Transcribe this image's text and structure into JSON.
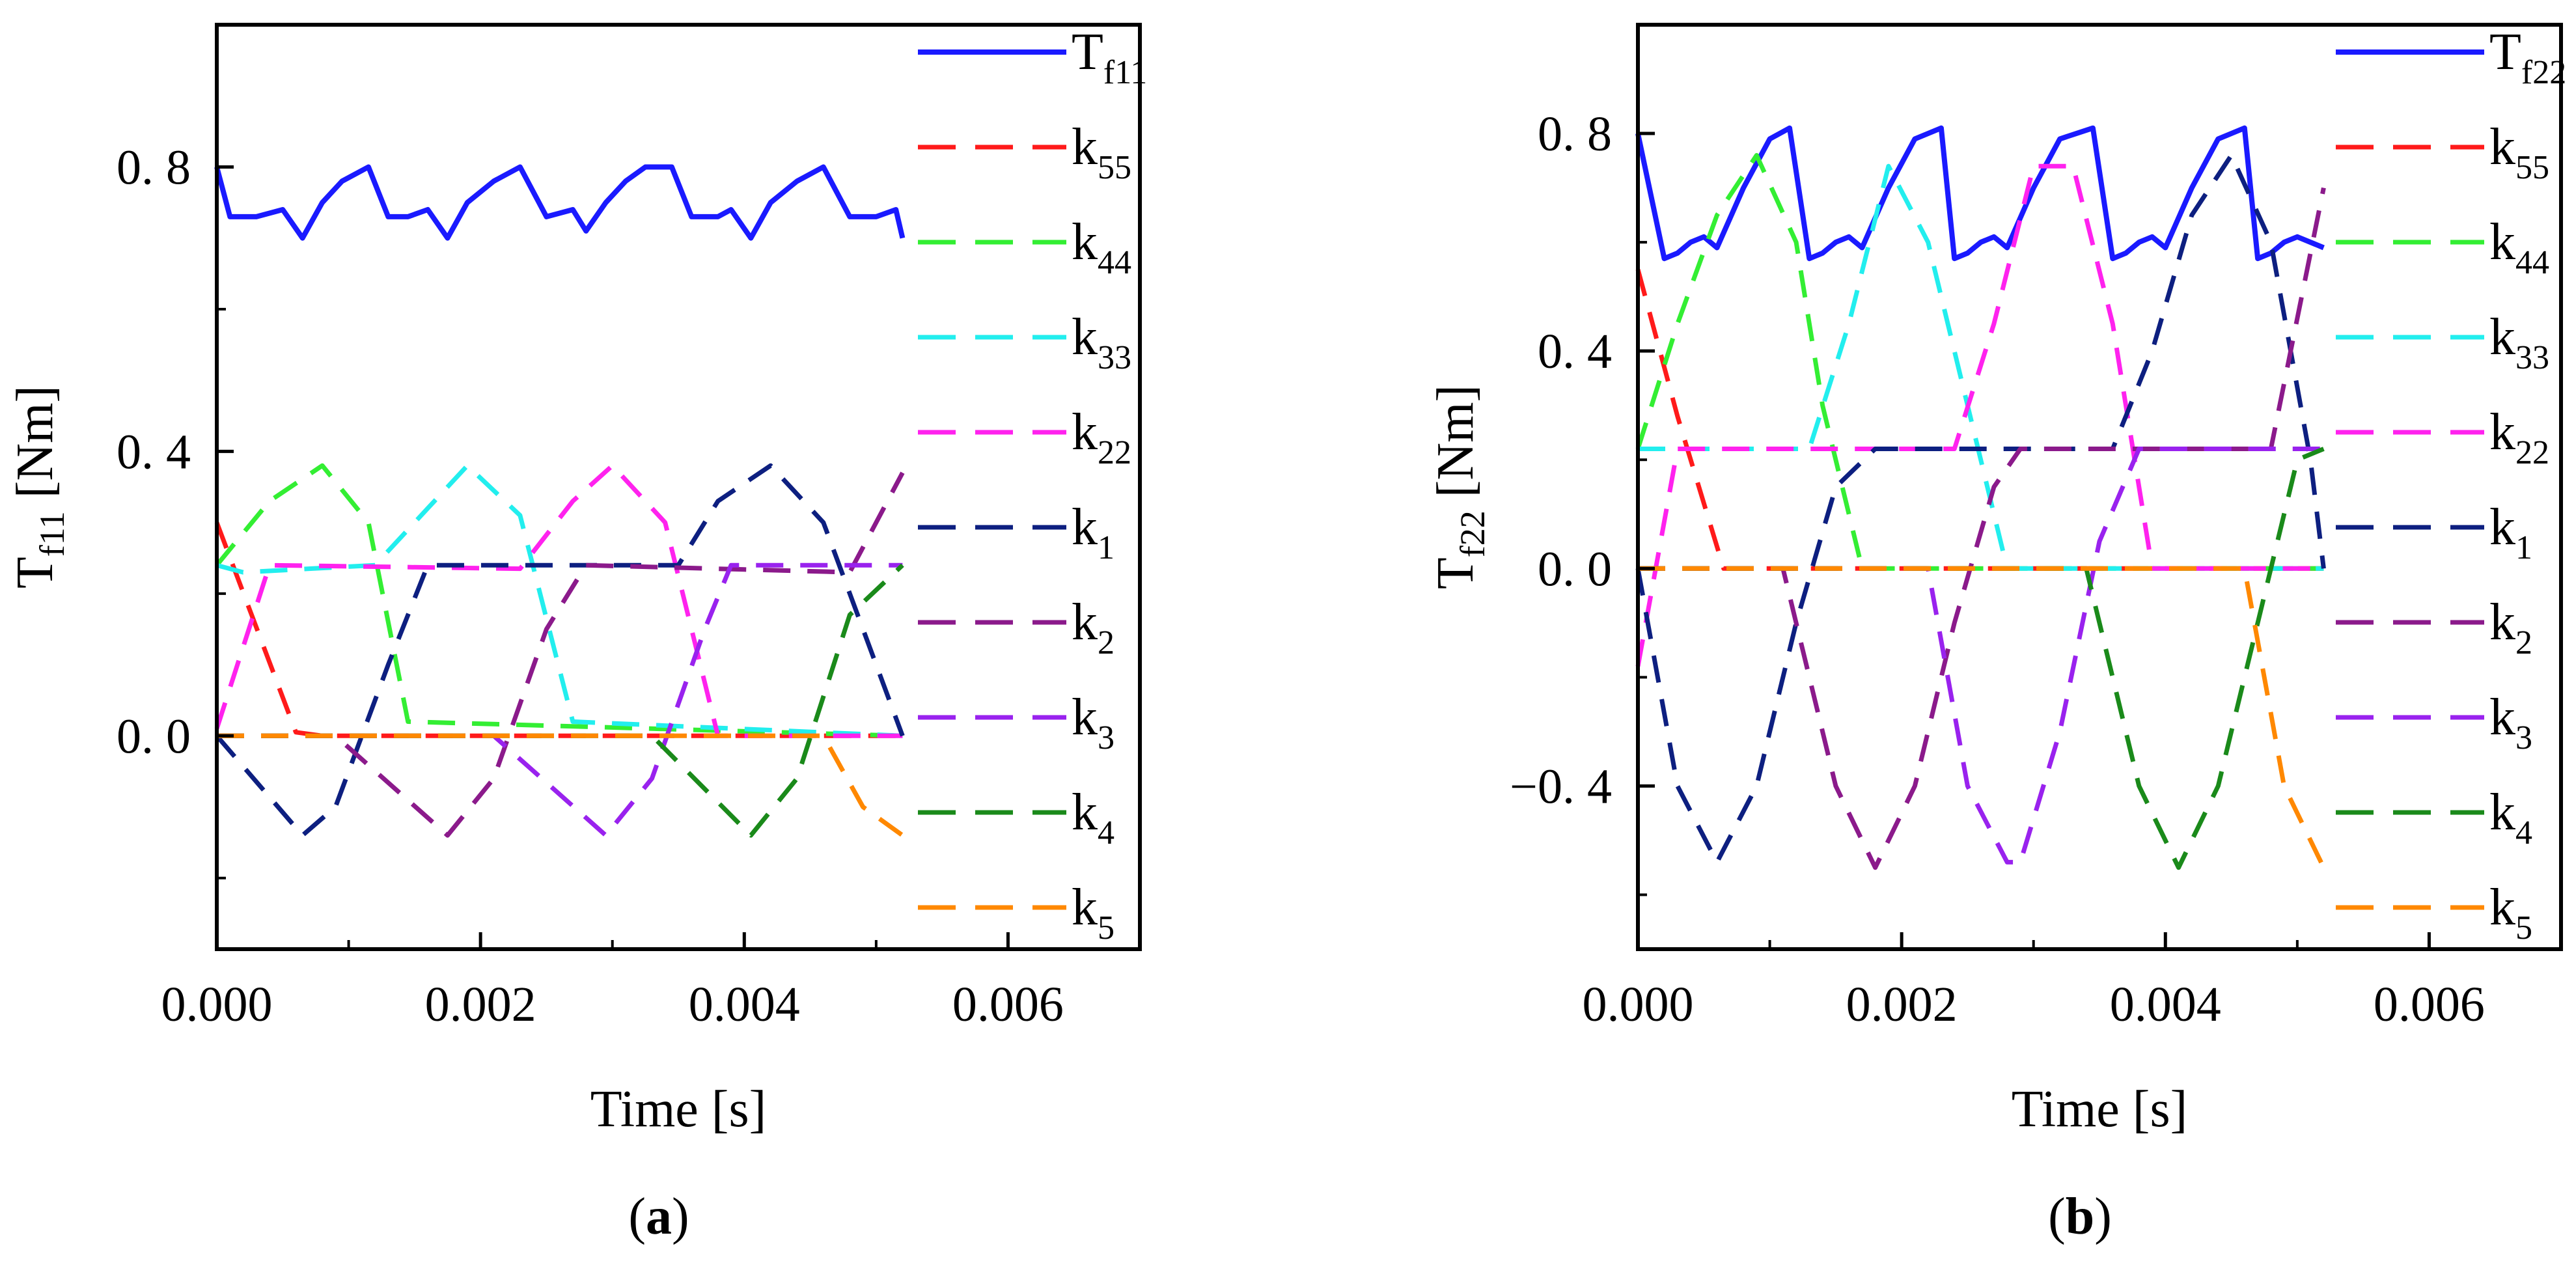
{
  "colors": {
    "Tf": "#1a1aff",
    "k55": "#ff1a1a",
    "k44": "#33ee33",
    "k33": "#22eeee",
    "k22": "#ff22ee",
    "k1": "#0d1f80",
    "k2": "#8b1a8b",
    "k3": "#9922ee",
    "k4": "#1a8a1a",
    "k5": "#ff8800",
    "axis": "#000000"
  },
  "chart_data": [
    {
      "type": "line",
      "panel_label": "a",
      "xlabel": "Time [s]",
      "ylabel_main": "T",
      "ylabel_sub": "f11",
      "ylabel_unit": " [Nm]",
      "xlim": [
        0,
        0.007
      ],
      "ylim": [
        -0.3,
        1.0
      ],
      "xticks": [
        0.0,
        0.002,
        0.004,
        0.006
      ],
      "xtick_labels": [
        "0.000",
        "0.002",
        "0.004",
        "0.006"
      ],
      "yticks": [
        0.0,
        0.4,
        0.8
      ],
      "ytick_labels": [
        "0. 0",
        "0. 4",
        "0. 8"
      ],
      "legend_position": "right-outside-top",
      "series": [
        {
          "key": "Tf",
          "name_main": "T",
          "name_sub": "f11",
          "style": "solid",
          "x": [
            0,
            0.0001,
            0.0003,
            0.0005,
            0.00065,
            0.0008,
            0.00095,
            0.00115,
            0.0013,
            0.00145,
            0.0016,
            0.00175,
            0.0019,
            0.0021,
            0.0023,
            0.0025,
            0.0027,
            0.0028,
            0.00295,
            0.0031,
            0.00325,
            0.00345,
            0.0036,
            0.0038,
            0.0039,
            0.00405,
            0.0042,
            0.0044,
            0.0046,
            0.0048,
            0.005,
            0.00515,
            0.0052
          ],
          "values": [
            0.8,
            0.73,
            0.73,
            0.74,
            0.7,
            0.75,
            0.78,
            0.8,
            0.73,
            0.73,
            0.74,
            0.7,
            0.75,
            0.78,
            0.8,
            0.73,
            0.74,
            0.71,
            0.75,
            0.78,
            0.8,
            0.8,
            0.73,
            0.73,
            0.74,
            0.7,
            0.75,
            0.78,
            0.8,
            0.73,
            0.73,
            0.74,
            0.7
          ]
        },
        {
          "key": "k55",
          "name_main": "k",
          "name_sub": "55",
          "style": "dashed",
          "x": [
            0,
            0.0006,
            0.0008,
            0.0052
          ],
          "values": [
            0.3,
            0.005,
            0.0,
            0.0
          ]
        },
        {
          "key": "k44",
          "name_main": "k",
          "name_sub": "44",
          "style": "dashed",
          "x": [
            0,
            0.0004,
            0.0008,
            0.00115,
            0.00145,
            0.0052
          ],
          "values": [
            0.24,
            0.33,
            0.38,
            0.3,
            0.02,
            0.0
          ]
        },
        {
          "key": "k33",
          "name_main": "k",
          "name_sub": "33",
          "style": "dashed",
          "x": [
            0,
            0.0002,
            0.0012,
            0.0016,
            0.0019,
            0.0023,
            0.0027,
            0.0052
          ],
          "values": [
            0.24,
            0.23,
            0.24,
            0.32,
            0.38,
            0.31,
            0.02,
            0.0
          ]
        },
        {
          "key": "k22",
          "name_main": "k",
          "name_sub": "22",
          "style": "dashed",
          "x": [
            0,
            0.0004,
            0.0023,
            0.0027,
            0.003,
            0.0034,
            0.0038,
            0.0052
          ],
          "values": [
            0.01,
            0.24,
            0.235,
            0.33,
            0.38,
            0.3,
            0.0,
            0.0
          ]
        },
        {
          "key": "k1",
          "name_main": "k",
          "name_sub": "1",
          "style": "dashed",
          "x": [
            0,
            0.00065,
            0.0009,
            0.0013,
            0.0016,
            0.0035,
            0.0038,
            0.0042,
            0.0046,
            0.0052
          ],
          "values": [
            0.0,
            -0.14,
            -0.1,
            0.1,
            0.24,
            0.24,
            0.33,
            0.38,
            0.3,
            0.0
          ]
        },
        {
          "key": "k2",
          "name_main": "k",
          "name_sub": "2",
          "style": "dashed",
          "x": [
            0,
            0.0009,
            0.00175,
            0.0021,
            0.0025,
            0.0028,
            0.0048,
            0.0052
          ],
          "values": [
            0.0,
            0.0,
            -0.14,
            -0.06,
            0.15,
            0.24,
            0.23,
            0.37
          ]
        },
        {
          "key": "k3",
          "name_main": "k",
          "name_sub": "3",
          "style": "dashed",
          "x": [
            0,
            0.0021,
            0.00295,
            0.0033,
            0.0037,
            0.0039,
            0.0052
          ],
          "values": [
            0.0,
            0.0,
            -0.14,
            -0.06,
            0.15,
            0.24,
            0.24
          ]
        },
        {
          "key": "k4",
          "name_main": "k",
          "name_sub": "4",
          "style": "dashed",
          "x": [
            0,
            0.0033,
            0.00405,
            0.0044,
            0.0048,
            0.0052
          ],
          "values": [
            0.0,
            0.0,
            -0.14,
            -0.06,
            0.17,
            0.24
          ]
        },
        {
          "key": "k5",
          "name_main": "k",
          "name_sub": "5",
          "style": "dashed",
          "x": [
            0,
            0.0046,
            0.0049,
            0.0052
          ],
          "values": [
            0.0,
            0.0,
            -0.1,
            -0.14
          ]
        }
      ]
    },
    {
      "type": "line",
      "panel_label": "b",
      "xlabel": "Time [s]",
      "ylabel_main": "T",
      "ylabel_sub": "f22",
      "ylabel_unit": " [Nm]",
      "xlim": [
        0,
        0.007
      ],
      "ylim": [
        -0.7,
        1.0
      ],
      "xticks": [
        0.0,
        0.002,
        0.004,
        0.006
      ],
      "xtick_labels": [
        "0.000",
        "0.002",
        "0.004",
        "0.006"
      ],
      "yticks": [
        -0.4,
        0.0,
        0.4,
        0.8
      ],
      "ytick_labels": [
        "−0. 4",
        "0. 0",
        "0. 4",
        "0. 8"
      ],
      "legend_position": "right-outside-top",
      "series": [
        {
          "key": "Tf",
          "name_main": "T",
          "name_sub": "f22",
          "style": "solid",
          "x": [
            0,
            0.0002,
            0.0003,
            0.0004,
            0.0005,
            0.0006,
            0.0008,
            0.001,
            0.00115,
            0.0013,
            0.0014,
            0.0015,
            0.0016,
            0.0017,
            0.0019,
            0.0021,
            0.0023,
            0.0024,
            0.0025,
            0.0026,
            0.0027,
            0.0028,
            0.003,
            0.0032,
            0.00345,
            0.0036,
            0.0037,
            0.0038,
            0.0039,
            0.004,
            0.0042,
            0.0044,
            0.0046,
            0.0047,
            0.0048,
            0.0049,
            0.005,
            0.0052
          ],
          "values": [
            0.8,
            0.57,
            0.58,
            0.6,
            0.61,
            0.59,
            0.7,
            0.79,
            0.81,
            0.57,
            0.58,
            0.6,
            0.61,
            0.59,
            0.7,
            0.79,
            0.81,
            0.57,
            0.58,
            0.6,
            0.61,
            0.59,
            0.7,
            0.79,
            0.81,
            0.57,
            0.58,
            0.6,
            0.61,
            0.59,
            0.7,
            0.79,
            0.81,
            0.57,
            0.58,
            0.6,
            0.61,
            0.59
          ]
        },
        {
          "key": "k55",
          "name_main": "k",
          "name_sub": "55",
          "style": "dashed",
          "x": [
            0,
            0.0003,
            0.00065,
            0.0052
          ],
          "values": [
            0.55,
            0.28,
            0.0,
            0.0
          ]
        },
        {
          "key": "k44",
          "name_main": "k",
          "name_sub": "44",
          "style": "dashed",
          "x": [
            0,
            0.0003,
            0.0006,
            0.0009,
            0.0012,
            0.0014,
            0.0017,
            0.0052
          ],
          "values": [
            0.22,
            0.45,
            0.65,
            0.76,
            0.6,
            0.3,
            0.0,
            0.0
          ]
        },
        {
          "key": "k33",
          "name_main": "k",
          "name_sub": "33",
          "style": "dashed",
          "x": [
            0,
            0.0013,
            0.0016,
            0.0019,
            0.0022,
            0.0025,
            0.0028,
            0.0052
          ],
          "values": [
            0.22,
            0.22,
            0.45,
            0.74,
            0.6,
            0.3,
            0.0,
            0.0
          ]
        },
        {
          "key": "k22",
          "name_main": "k",
          "name_sub": "22",
          "style": "dashed",
          "x": [
            0,
            0.0003,
            0.0024,
            0.0027,
            0.003,
            0.0033,
            0.0036,
            0.0039,
            0.0052
          ],
          "values": [
            -0.18,
            0.22,
            0.22,
            0.45,
            0.74,
            0.74,
            0.45,
            0.0,
            0.0
          ]
        },
        {
          "key": "k1",
          "name_main": "k",
          "name_sub": "1",
          "style": "dashed",
          "x": [
            0,
            0.0003,
            0.0006,
            0.0009,
            0.0012,
            0.0015,
            0.0018,
            0.0036,
            0.0039,
            0.0042,
            0.0045,
            0.0048,
            0.0051,
            0.0052
          ],
          "values": [
            0.0,
            -0.4,
            -0.54,
            -0.4,
            -0.1,
            0.15,
            0.22,
            0.22,
            0.4,
            0.65,
            0.76,
            0.6,
            0.2,
            0.0
          ]
        },
        {
          "key": "k2",
          "name_main": "k",
          "name_sub": "2",
          "style": "dashed",
          "x": [
            0,
            0.0011,
            0.0015,
            0.0018,
            0.0021,
            0.0024,
            0.0027,
            0.0029,
            0.0048,
            0.0052
          ],
          "values": [
            0.0,
            0.0,
            -0.4,
            -0.55,
            -0.4,
            -0.1,
            0.15,
            0.22,
            0.22,
            0.7
          ]
        },
        {
          "key": "k3",
          "name_main": "k",
          "name_sub": "3",
          "style": "dashed",
          "x": [
            0,
            0.0022,
            0.0025,
            0.0028,
            0.0029,
            0.0032,
            0.0035,
            0.0038,
            0.0052
          ],
          "values": [
            0.0,
            0.0,
            -0.4,
            -0.54,
            -0.54,
            -0.3,
            0.05,
            0.22,
            0.22
          ]
        },
        {
          "key": "k4",
          "name_main": "k",
          "name_sub": "4",
          "style": "dashed",
          "x": [
            0,
            0.0034,
            0.0038,
            0.0041,
            0.0044,
            0.0047,
            0.005,
            0.0052
          ],
          "values": [
            0.0,
            0.0,
            -0.4,
            -0.55,
            -0.4,
            -0.1,
            0.2,
            0.22
          ]
        },
        {
          "key": "k5",
          "name_main": "k",
          "name_sub": "5",
          "style": "dashed",
          "x": [
            0,
            0.0046,
            0.0049,
            0.0052
          ],
          "values": [
            0.0,
            0.0,
            -0.4,
            -0.55
          ]
        }
      ]
    }
  ]
}
